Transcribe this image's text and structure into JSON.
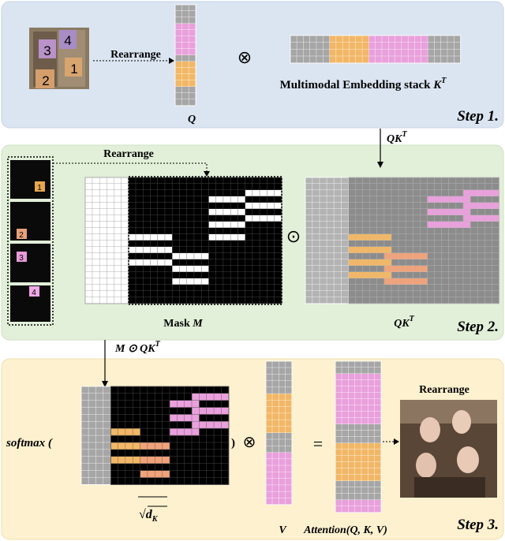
{
  "step1": {
    "face_labels": [
      "1",
      "2",
      "3",
      "4"
    ],
    "rearrange": "Rearrange",
    "operator": "⊗",
    "stack_label": "Multimodal Embedding stack",
    "stack_symbol": "K",
    "stack_sup": "T",
    "q_label": "Q",
    "step": "Step 1."
  },
  "transition1": {
    "base": "QK",
    "sup": "T"
  },
  "step2": {
    "crop_labels": [
      "1",
      "2",
      "3",
      "4"
    ],
    "rearrange": "Rearrange",
    "mask_label": "Mask",
    "mask_symbol": "M",
    "operator": "⊙",
    "qk_base": "QK",
    "qk_sup": "T",
    "step": "Step 2."
  },
  "transition2": {
    "label": "M ⊙ QK",
    "sup": "T"
  },
  "step3": {
    "softmax": "softmax (",
    "close": ")",
    "times": "⊗",
    "equals": "=",
    "sqrt": "√",
    "dk": "d",
    "dk_sub": "K",
    "v_label": "V",
    "attention": "Attention(Q, K, V)",
    "rearrange": "Rearrange",
    "step": "Step 3."
  }
}
